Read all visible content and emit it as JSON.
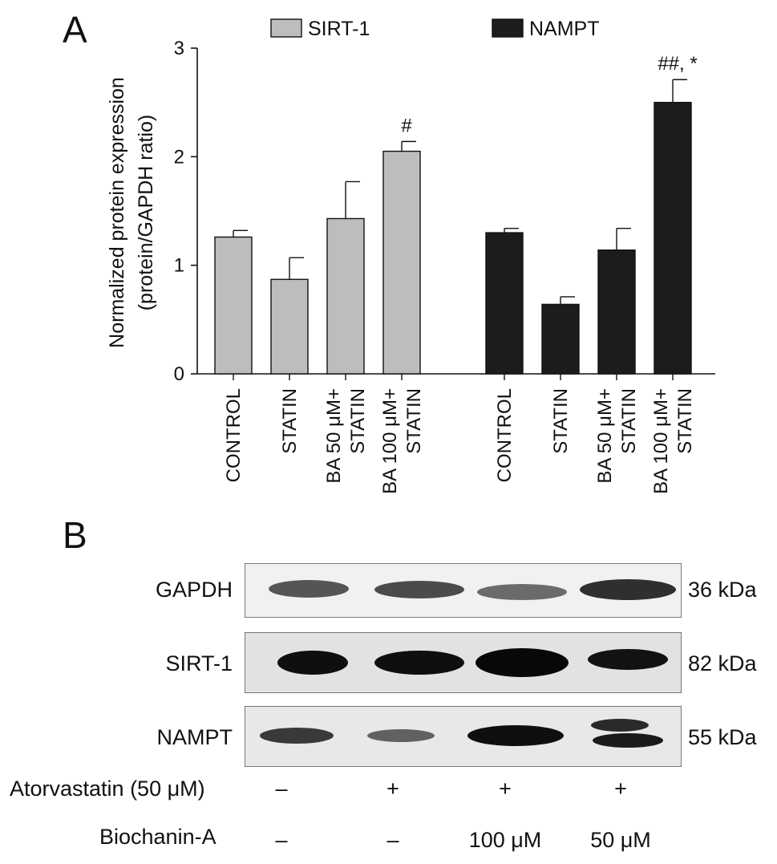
{
  "panel_a_label": "A",
  "panel_b_label": "B",
  "chart_data": {
    "type": "bar",
    "ylabel_line1": "Normalized protein expression",
    "ylabel_line2": "(protein/GAPDH ratio)",
    "ylim": [
      0,
      3
    ],
    "yticks": [
      "0",
      "1",
      "2",
      "3"
    ],
    "categories": [
      [
        "CONTROL"
      ],
      [
        "STATIN"
      ],
      [
        "BA 50 μM+",
        "STATIN"
      ],
      [
        "BA 100 μM+",
        "STATIN"
      ]
    ],
    "series": [
      {
        "name": "SIRT-1",
        "color": "#bdbdbd",
        "values": [
          1.26,
          0.87,
          1.43,
          2.05
        ],
        "errors": [
          0.06,
          0.2,
          0.34,
          0.09
        ],
        "annotations": [
          "",
          "",
          "",
          "#"
        ]
      },
      {
        "name": "NAMPT",
        "color": "#1c1c1c",
        "values": [
          1.3,
          0.64,
          1.14,
          2.5
        ],
        "errors": [
          0.04,
          0.07,
          0.2,
          0.21
        ],
        "annotations": [
          "",
          "",
          "",
          "##, *"
        ]
      }
    ],
    "legend_position": "top"
  },
  "blot": {
    "rows": [
      {
        "name": "GAPDH",
        "kda": "36 kDa"
      },
      {
        "name": "SIRT-1",
        "kda": "82 kDa"
      },
      {
        "name": "NAMPT",
        "kda": "55 kDa"
      }
    ],
    "conditions": [
      {
        "label": "Atorvastatin (50 μM)",
        "values": [
          "–",
          "+",
          "+",
          "+"
        ]
      },
      {
        "label": "Biochanin-A",
        "values": [
          "–",
          "–",
          "100 μM",
          "50 μM"
        ]
      }
    ]
  }
}
